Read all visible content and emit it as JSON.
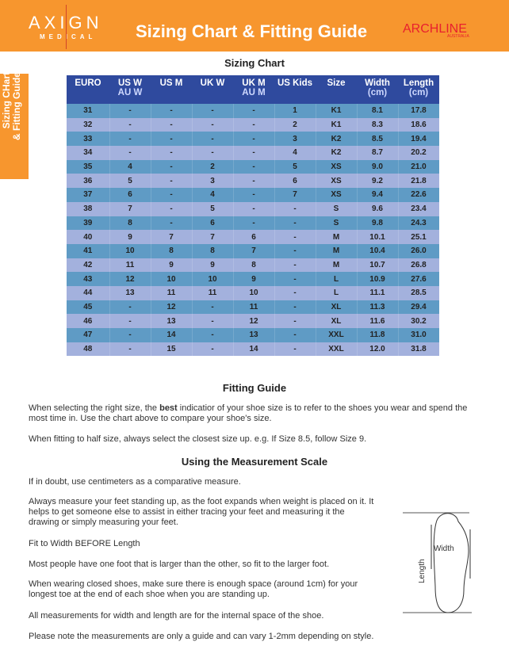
{
  "header": {
    "logo_main": "AXIGN",
    "logo_sub": "MEDICAL",
    "title": "Sizing Chart & Fitting Guide",
    "brand": "ARCHLINE",
    "brand_sub": "AUSTRALIA"
  },
  "side_tab": {
    "line1": "Sizing CHart",
    "line2": "& Fitting Guide"
  },
  "sizing_chart": {
    "heading": "Sizing Chart",
    "columns": [
      {
        "label": "EURO"
      },
      {
        "label": "US W",
        "sub": "AU W"
      },
      {
        "label": "US M"
      },
      {
        "label": "UK W"
      },
      {
        "label": "UK M",
        "sub": "AU M"
      },
      {
        "label": "US Kids"
      },
      {
        "label": "Size"
      },
      {
        "label": "Width",
        "sub": "(cm)"
      },
      {
        "label": "Length",
        "sub": "(cm)"
      }
    ],
    "rows": [
      [
        "31",
        "-",
        "-",
        "-",
        "-",
        "1",
        "K1",
        "8.1",
        "17.8"
      ],
      [
        "32",
        "-",
        "-",
        "-",
        "-",
        "2",
        "K1",
        "8.3",
        "18.6"
      ],
      [
        "33",
        "-",
        "-",
        "-",
        "-",
        "3",
        "K2",
        "8.5",
        "19.4"
      ],
      [
        "34",
        "-",
        "-",
        "-",
        "-",
        "4",
        "K2",
        "8.7",
        "20.2"
      ],
      [
        "35",
        "4",
        "-",
        "2",
        "-",
        "5",
        "XS",
        "9.0",
        "21.0"
      ],
      [
        "36",
        "5",
        "-",
        "3",
        "-",
        "6",
        "XS",
        "9.2",
        "21.8"
      ],
      [
        "37",
        "6",
        "-",
        "4",
        "-",
        "7",
        "XS",
        "9.4",
        "22.6"
      ],
      [
        "38",
        "7",
        "-",
        "5",
        "-",
        "-",
        "S",
        "9.6",
        "23.4"
      ],
      [
        "39",
        "8",
        "-",
        "6",
        "-",
        "-",
        "S",
        "9.8",
        "24.3"
      ],
      [
        "40",
        "9",
        "7",
        "7",
        "6",
        "-",
        "M",
        "10.1",
        "25.1"
      ],
      [
        "41",
        "10",
        "8",
        "8",
        "7",
        "-",
        "M",
        "10.4",
        "26.0"
      ],
      [
        "42",
        "11",
        "9",
        "9",
        "8",
        "-",
        "M",
        "10.7",
        "26.8"
      ],
      [
        "43",
        "12",
        "10",
        "10",
        "9",
        "-",
        "L",
        "10.9",
        "27.6"
      ],
      [
        "44",
        "13",
        "11",
        "11",
        "10",
        "-",
        "L",
        "11.1",
        "28.5"
      ],
      [
        "45",
        "-",
        "12",
        "-",
        "11",
        "-",
        "XL",
        "11.3",
        "29.4"
      ],
      [
        "46",
        "-",
        "13",
        "-",
        "12",
        "-",
        "XL",
        "11.6",
        "30.2"
      ],
      [
        "47",
        "-",
        "14",
        "-",
        "13",
        "-",
        "XXL",
        "11.8",
        "31.0"
      ],
      [
        "48",
        "-",
        "15",
        "-",
        "14",
        "-",
        "XXL",
        "12.0",
        "31.8"
      ]
    ]
  },
  "fitting_guide": {
    "heading": "Fitting Guide",
    "p1_pre": "When selecting the right size, the ",
    "p1_bold": "best",
    "p1_post": " indicatior of your shoe size is to refer to the shoes you wear and spend the most time in. Use the chart above to compare your shoe's size.",
    "p2": "When fitting to half size, always select the closest size up. e.g. If Size 8.5, follow Size 9."
  },
  "measurement": {
    "heading": "Using the Measurement Scale",
    "paragraphs": [
      "If in doubt, use centimeters as a comparative measure.",
      "Always measure your feet standing up, as the foot expands when weight is placed on it. It helps to get someone else to assist in either tracing your feet and measuring it the drawing or simply measuring your feet.",
      "Fit to Width BEFORE Length",
      "Most people have one foot that is larger than the other, so fit to the larger foot.",
      "When wearing closed shoes, make sure there is enough space (around 1cm) for your longest toe at the end of each shoe when you are standing up.",
      "All measurements for width and length are for the internal space of the shoe.",
      "Please note the measurements are only a guide and can vary 1-2mm depending on style."
    ],
    "diagram": {
      "width_label": "Width",
      "length_label": "Length"
    }
  },
  "colors": {
    "orange": "#f7962e",
    "header_blue": "#2f4a9e",
    "row_dark": "#5f9bc5",
    "row_light": "#a3b1dd",
    "brand_red": "#e8202e"
  }
}
